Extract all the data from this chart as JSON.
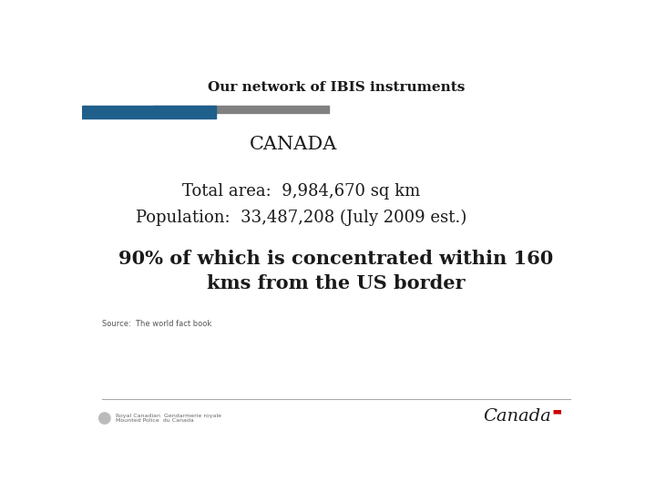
{
  "title": "Our network of IBIS instruments",
  "title_fontsize": 11,
  "title_color": "#1a1a1a",
  "canada_label": "CANADA",
  "canada_fontsize": 15,
  "canada_color": "#1a1a1a",
  "line1": "Total area:  9,984,670 sq km",
  "line2": "Population:  33,487,208 (July 2009 est.)",
  "body_fontsize": 13,
  "body_color": "#1a1a1a",
  "bold_line1": "90% of which is concentrated within 160",
  "bold_line2": "kms from the US border",
  "bold_fontsize": 15,
  "bold_color": "#1a1a1a",
  "source_text": "Source:  The world fact book",
  "source_fontsize": 6,
  "source_color": "#555555",
  "bar_blue_color": "#1f5f8b",
  "bar_gray_color": "#808080",
  "footer_line_color": "#aaaaaa",
  "canada_logo_color_main": "#1a1a1a",
  "canada_logo_color_red": "#cc0000",
  "background_color": "#ffffff"
}
